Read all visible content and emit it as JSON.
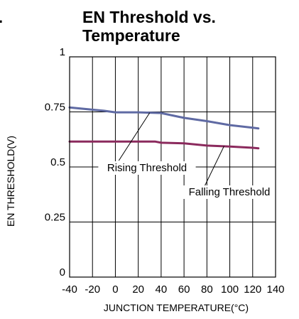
{
  "page_fragment": ".",
  "chart_data": {
    "type": "line",
    "title_lines": [
      "EN  Threshold vs.",
      "Temperature"
    ],
    "xlabel": "JUNCTION TEMPERATURE(°C)",
    "ylabel": "EN THRESHOLD(V)",
    "xlim": [
      -40,
      140
    ],
    "ylim": [
      0,
      1
    ],
    "xticks": [
      -40,
      -20,
      0,
      20,
      40,
      60,
      80,
      100,
      120,
      140
    ],
    "xtick_labels": [
      "-40",
      "-20",
      "0",
      "20",
      "40",
      "60",
      "80",
      "100",
      "120",
      "140"
    ],
    "yticks": [
      0,
      0.25,
      0.5,
      0.75,
      1
    ],
    "ytick_labels": [
      "0",
      "0.25",
      "0.5",
      "0.75",
      "1"
    ],
    "grid": true,
    "series": [
      {
        "name": "Rising Threshold",
        "color": "#5f6aa3",
        "x": [
          -40,
          -20,
          -10,
          0,
          20,
          40,
          60,
          80,
          100,
          120,
          125
        ],
        "y": [
          0.77,
          0.76,
          0.755,
          0.748,
          0.748,
          0.745,
          0.723,
          0.708,
          0.69,
          0.678,
          0.675
        ]
      },
      {
        "name": "Falling Threshold",
        "color": "#8b2a5d",
        "x": [
          -40,
          -20,
          0,
          20,
          35,
          40,
          60,
          80,
          100,
          120,
          125
        ],
        "y": [
          0.615,
          0.615,
          0.615,
          0.615,
          0.615,
          0.61,
          0.607,
          0.597,
          0.593,
          0.587,
          0.585
        ]
      }
    ],
    "annotations": [
      {
        "text": "Rising Threshold",
        "target_series": 0
      },
      {
        "text": "Falling Threshold",
        "target_series": 1
      }
    ]
  }
}
